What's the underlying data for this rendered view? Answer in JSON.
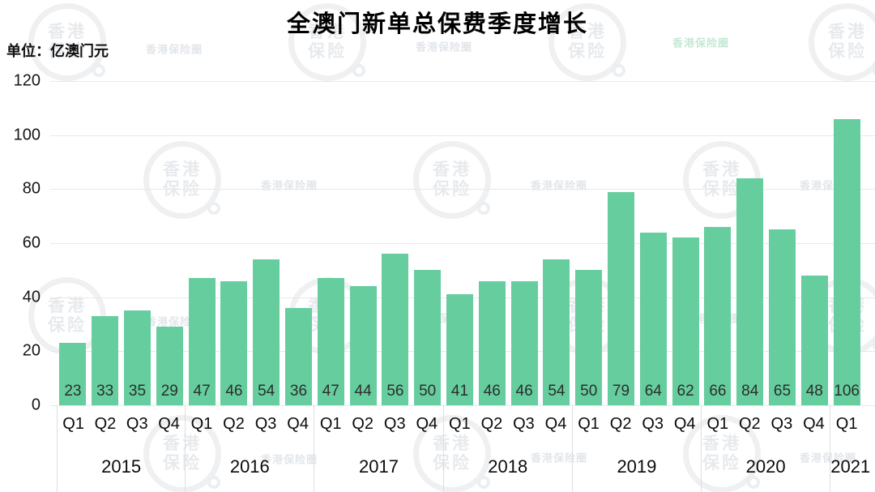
{
  "header": {
    "title": "全澳门新单总保费季度增长",
    "unit_label": "单位：亿澳门元"
  },
  "watermark": {
    "circle_line1": "香港",
    "circle_line2": "保险",
    "small_text": "香港保险圈"
  },
  "chart_data": {
    "type": "bar",
    "title": "全澳门新单总保费季度增长",
    "unit": "亿澳门元",
    "xlabel": "",
    "ylabel": "",
    "ylim": [
      0,
      120
    ],
    "yticks": [
      120,
      100,
      80,
      60,
      40,
      20,
      0
    ],
    "grid": "horizontal",
    "legend": "none",
    "bar_color": "#66cd9f",
    "bar_label_color": "#2d2d2d",
    "categories": [
      "2015 Q1",
      "2015 Q2",
      "2015 Q3",
      "2015 Q4",
      "2016 Q1",
      "2016 Q2",
      "2016 Q3",
      "2016 Q4",
      "2017 Q1",
      "2017 Q2",
      "2017 Q3",
      "2017 Q4",
      "2018 Q1",
      "2018 Q2",
      "2018 Q3",
      "2018 Q4",
      "2019 Q1",
      "2019 Q2",
      "2019 Q3",
      "2019 Q4",
      "2020 Q1",
      "2020 Q2",
      "2020 Q3",
      "2020 Q4",
      "2021 Q1"
    ],
    "values": [
      23,
      33,
      35,
      29,
      47,
      46,
      54,
      36,
      47,
      44,
      56,
      50,
      41,
      46,
      46,
      54,
      50,
      79,
      64,
      62,
      66,
      84,
      65,
      48,
      106
    ],
    "year_groups": [
      {
        "year": "2015",
        "quarters": [
          "Q1",
          "Q2",
          "Q3",
          "Q4"
        ],
        "values": [
          23,
          33,
          35,
          29
        ]
      },
      {
        "year": "2016",
        "quarters": [
          "Q1",
          "Q2",
          "Q3",
          "Q4"
        ],
        "values": [
          47,
          46,
          54,
          36
        ]
      },
      {
        "year": "2017",
        "quarters": [
          "Q1",
          "Q2",
          "Q3",
          "Q4"
        ],
        "values": [
          47,
          44,
          56,
          50
        ]
      },
      {
        "year": "2018",
        "quarters": [
          "Q1",
          "Q2",
          "Q3",
          "Q4"
        ],
        "values": [
          41,
          46,
          46,
          54
        ]
      },
      {
        "year": "2019",
        "quarters": [
          "Q1",
          "Q2",
          "Q3",
          "Q4"
        ],
        "values": [
          50,
          79,
          64,
          62
        ]
      },
      {
        "year": "2020",
        "quarters": [
          "Q1",
          "Q2",
          "Q3",
          "Q4"
        ],
        "values": [
          66,
          84,
          65,
          48
        ]
      },
      {
        "year": "2021",
        "quarters": [
          "Q1"
        ],
        "values": [
          106
        ]
      }
    ]
  }
}
